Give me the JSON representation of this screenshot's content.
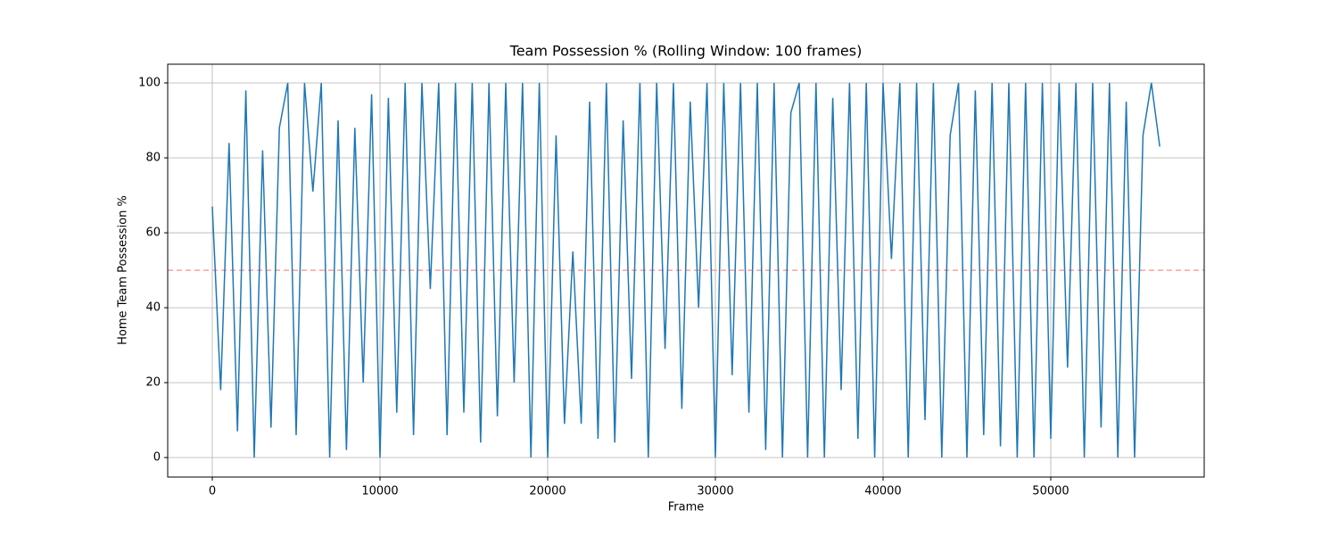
{
  "chart_data": {
    "type": "line",
    "title": "Team Possession % (Rolling Window: 100 frames)",
    "xlabel": "Frame",
    "ylabel": "Home Team Possession %",
    "x": [
      0,
      500,
      1000,
      1500,
      2000,
      2500,
      3000,
      3500,
      4000,
      4500,
      5000,
      5500,
      6000,
      6500,
      7000,
      7500,
      8000,
      8500,
      9000,
      9500,
      10000,
      10500,
      11000,
      11500,
      12000,
      12500,
      13000,
      13500,
      14000,
      14500,
      15000,
      15500,
      16000,
      16500,
      17000,
      17500,
      18000,
      18500,
      19000,
      19500,
      20000,
      20500,
      21000,
      21500,
      22000,
      22500,
      23000,
      23500,
      24000,
      24500,
      25000,
      25500,
      26000,
      26500,
      27000,
      27500,
      28000,
      28500,
      29000,
      29500,
      30000,
      30500,
      31000,
      31500,
      32000,
      32500,
      33000,
      33500,
      34000,
      34500,
      35000,
      35500,
      36000,
      36500,
      37000,
      37500,
      38000,
      38500,
      39000,
      39500,
      40000,
      40500,
      41000,
      41500,
      42000,
      42500,
      43000,
      43500,
      44000,
      44500,
      45000,
      45500,
      46000,
      46500,
      47000,
      47500,
      48000,
      48500,
      49000,
      49500,
      50000,
      50500,
      51000,
      51500,
      52000,
      52500,
      53000,
      53500,
      54000,
      54500,
      55000,
      55500,
      56000,
      56500
    ],
    "values": [
      67,
      18,
      84,
      7,
      98,
      0,
      82,
      8,
      88,
      100,
      6,
      100,
      71,
      100,
      0,
      90,
      2,
      88,
      20,
      97,
      0,
      96,
      12,
      100,
      6,
      100,
      45,
      100,
      6,
      100,
      12,
      100,
      4,
      100,
      11,
      100,
      20,
      100,
      0,
      100,
      0,
      86,
      9,
      55,
      9,
      95,
      5,
      100,
      4,
      90,
      21,
      100,
      0,
      100,
      29,
      100,
      13,
      95,
      40,
      100,
      0,
      100,
      22,
      100,
      12,
      100,
      2,
      100,
      0,
      92,
      100,
      0,
      100,
      0,
      96,
      18,
      100,
      5,
      100,
      0,
      100,
      53,
      100,
      0,
      100,
      10,
      100,
      0,
      86,
      100,
      0,
      98,
      6,
      100,
      3,
      100,
      0,
      100,
      0,
      100,
      5,
      100,
      24,
      100,
      0,
      100,
      8,
      100,
      0,
      95,
      0,
      86,
      100,
      83
    ],
    "color": "#1f77b4",
    "xlim": [
      -2660,
      59150
    ],
    "ylim": [
      -5.2,
      105
    ],
    "xticks": [
      0,
      10000,
      20000,
      30000,
      40000,
      50000
    ],
    "yticks": [
      0,
      20,
      40,
      60,
      80,
      100
    ],
    "grid": true,
    "hline": {
      "value": 50,
      "color": "#ff9f9f"
    }
  }
}
